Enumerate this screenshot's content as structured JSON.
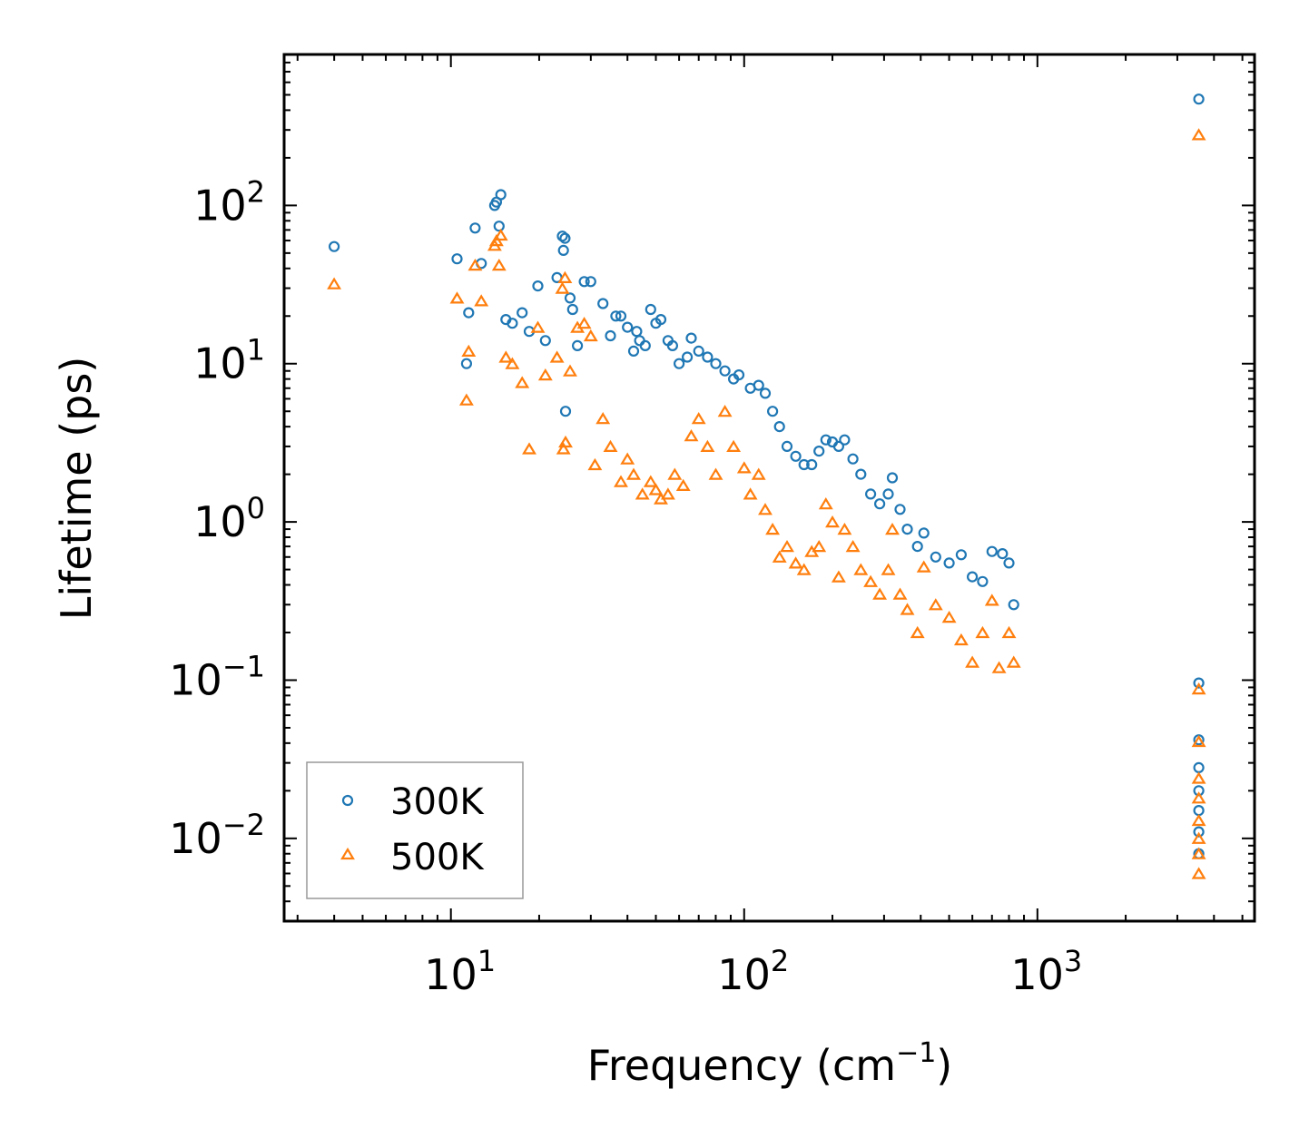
{
  "chart_data": {
    "type": "scatter",
    "title": "",
    "xlabel": "Frequency (cm",
    "xlabel_superscript": "−1",
    "xlabel_suffix": ")",
    "ylabel": "Lifetime (ps)",
    "xscale": "log",
    "yscale": "log",
    "xlim": [
      2.7,
      5500
    ],
    "ylim": [
      0.003,
      900
    ],
    "x_ticks": [
      {
        "value": 10,
        "base": "10",
        "exp": "1"
      },
      {
        "value": 100,
        "base": "10",
        "exp": "2"
      },
      {
        "value": 1000,
        "base": "10",
        "exp": "3"
      }
    ],
    "y_ticks": [
      {
        "value": 0.01,
        "base": "10",
        "exp": "−2"
      },
      {
        "value": 0.1,
        "base": "10",
        "exp": "−1"
      },
      {
        "value": 1,
        "base": "10",
        "exp": "0"
      },
      {
        "value": 10,
        "base": "10",
        "exp": "1"
      },
      {
        "value": 100,
        "base": "10",
        "exp": "2"
      }
    ],
    "legend_position": "bottom-left",
    "series": [
      {
        "name": "300K",
        "marker": "circle",
        "color": "#1f77b4",
        "points": [
          [
            4.0,
            55
          ],
          [
            10.5,
            46
          ],
          [
            11.3,
            10
          ],
          [
            11.5,
            21
          ],
          [
            12.1,
            72
          ],
          [
            12.7,
            43
          ],
          [
            14.1,
            100
          ],
          [
            14.3,
            105
          ],
          [
            14.8,
            117
          ],
          [
            14.6,
            74
          ],
          [
            15.4,
            19
          ],
          [
            16.2,
            18
          ],
          [
            17.5,
            21
          ],
          [
            18.5,
            16
          ],
          [
            19.8,
            31
          ],
          [
            21,
            14
          ],
          [
            23,
            35
          ],
          [
            24,
            64
          ],
          [
            24.5,
            62
          ],
          [
            24.2,
            52
          ],
          [
            24.6,
            5.0
          ],
          [
            25.5,
            26
          ],
          [
            26,
            22
          ],
          [
            27,
            13
          ],
          [
            28.5,
            33
          ],
          [
            30,
            33
          ],
          [
            33,
            24
          ],
          [
            35,
            15
          ],
          [
            36.5,
            20
          ],
          [
            38,
            20
          ],
          [
            40,
            17
          ],
          [
            42,
            12
          ],
          [
            43,
            16
          ],
          [
            44,
            14
          ],
          [
            46,
            13
          ],
          [
            48,
            22
          ],
          [
            50,
            18
          ],
          [
            52,
            19
          ],
          [
            55,
            14
          ],
          [
            57,
            13
          ],
          [
            60,
            10
          ],
          [
            64,
            11
          ],
          [
            66,
            14.5
          ],
          [
            70,
            12
          ],
          [
            75,
            11
          ],
          [
            80,
            10
          ],
          [
            86,
            9
          ],
          [
            92,
            8
          ],
          [
            96,
            8.5
          ],
          [
            105,
            7
          ],
          [
            112,
            7.3
          ],
          [
            118,
            6.5
          ],
          [
            125,
            5
          ],
          [
            132,
            4
          ],
          [
            140,
            3
          ],
          [
            150,
            2.6
          ],
          [
            160,
            2.3
          ],
          [
            170,
            2.3
          ],
          [
            180,
            2.8
          ],
          [
            190,
            3.3
          ],
          [
            200,
            3.2
          ],
          [
            210,
            3.0
          ],
          [
            220,
            3.3
          ],
          [
            235,
            2.5
          ],
          [
            250,
            2.0
          ],
          [
            270,
            1.5
          ],
          [
            290,
            1.3
          ],
          [
            310,
            1.5
          ],
          [
            320,
            1.9
          ],
          [
            340,
            1.2
          ],
          [
            360,
            0.9
          ],
          [
            390,
            0.7
          ],
          [
            410,
            0.85
          ],
          [
            450,
            0.6
          ],
          [
            500,
            0.55
          ],
          [
            550,
            0.62
          ],
          [
            600,
            0.45
          ],
          [
            650,
            0.42
          ],
          [
            700,
            0.65
          ],
          [
            760,
            0.63
          ],
          [
            800,
            0.55
          ],
          [
            830,
            0.3
          ],
          [
            3550,
            470
          ],
          [
            3550,
            0.096
          ],
          [
            3550,
            0.042
          ],
          [
            3550,
            0.028
          ],
          [
            3550,
            0.02
          ],
          [
            3550,
            0.015
          ],
          [
            3550,
            0.011
          ],
          [
            3550,
            0.008
          ]
        ]
      },
      {
        "name": "500K",
        "marker": "triangle",
        "color": "#ff7f0e",
        "points": [
          [
            4.0,
            32
          ],
          [
            10.5,
            26
          ],
          [
            11.3,
            5.9
          ],
          [
            11.5,
            12
          ],
          [
            12.1,
            42
          ],
          [
            12.7,
            25
          ],
          [
            14.1,
            56
          ],
          [
            14.3,
            60
          ],
          [
            14.8,
            65
          ],
          [
            14.6,
            42
          ],
          [
            15.4,
            11
          ],
          [
            16.2,
            10
          ],
          [
            17.5,
            7.6
          ],
          [
            18.5,
            2.9
          ],
          [
            19.8,
            17
          ],
          [
            21,
            8.5
          ],
          [
            23,
            11
          ],
          [
            24,
            30
          ],
          [
            24.5,
            35
          ],
          [
            24.2,
            2.9
          ],
          [
            24.6,
            3.2
          ],
          [
            25.5,
            9
          ],
          [
            27,
            17
          ],
          [
            28.5,
            18
          ],
          [
            30,
            15
          ],
          [
            31,
            2.3
          ],
          [
            33,
            4.5
          ],
          [
            35,
            3.0
          ],
          [
            38,
            1.8
          ],
          [
            40,
            2.5
          ],
          [
            42,
            2.0
          ],
          [
            45,
            1.5
          ],
          [
            48,
            1.8
          ],
          [
            50,
            1.6
          ],
          [
            52,
            1.4
          ],
          [
            55,
            1.5
          ],
          [
            58,
            2.0
          ],
          [
            62,
            1.7
          ],
          [
            66,
            3.5
          ],
          [
            70,
            4.5
          ],
          [
            75,
            3.0
          ],
          [
            80,
            2.0
          ],
          [
            86,
            5
          ],
          [
            92,
            3
          ],
          [
            100,
            2.2
          ],
          [
            105,
            1.5
          ],
          [
            112,
            2.0
          ],
          [
            118,
            1.2
          ],
          [
            125,
            0.9
          ],
          [
            132,
            0.6
          ],
          [
            140,
            0.7
          ],
          [
            150,
            0.55
          ],
          [
            160,
            0.5
          ],
          [
            170,
            0.65
          ],
          [
            180,
            0.7
          ],
          [
            190,
            1.3
          ],
          [
            200,
            1.0
          ],
          [
            210,
            0.45
          ],
          [
            220,
            0.9
          ],
          [
            235,
            0.7
          ],
          [
            250,
            0.5
          ],
          [
            270,
            0.42
          ],
          [
            290,
            0.35
          ],
          [
            310,
            0.5
          ],
          [
            320,
            0.9
          ],
          [
            340,
            0.35
          ],
          [
            360,
            0.28
          ],
          [
            390,
            0.2
          ],
          [
            410,
            0.52
          ],
          [
            450,
            0.3
          ],
          [
            500,
            0.25
          ],
          [
            550,
            0.18
          ],
          [
            600,
            0.13
          ],
          [
            650,
            0.2
          ],
          [
            700,
            0.32
          ],
          [
            740,
            0.12
          ],
          [
            800,
            0.2
          ],
          [
            830,
            0.13
          ],
          [
            3550,
            280
          ],
          [
            3550,
            0.088
          ],
          [
            3550,
            0.041
          ],
          [
            3550,
            0.024
          ],
          [
            3550,
            0.018
          ],
          [
            3550,
            0.013
          ],
          [
            3550,
            0.01
          ],
          [
            3550,
            0.008
          ],
          [
            3550,
            0.006
          ]
        ]
      }
    ]
  }
}
